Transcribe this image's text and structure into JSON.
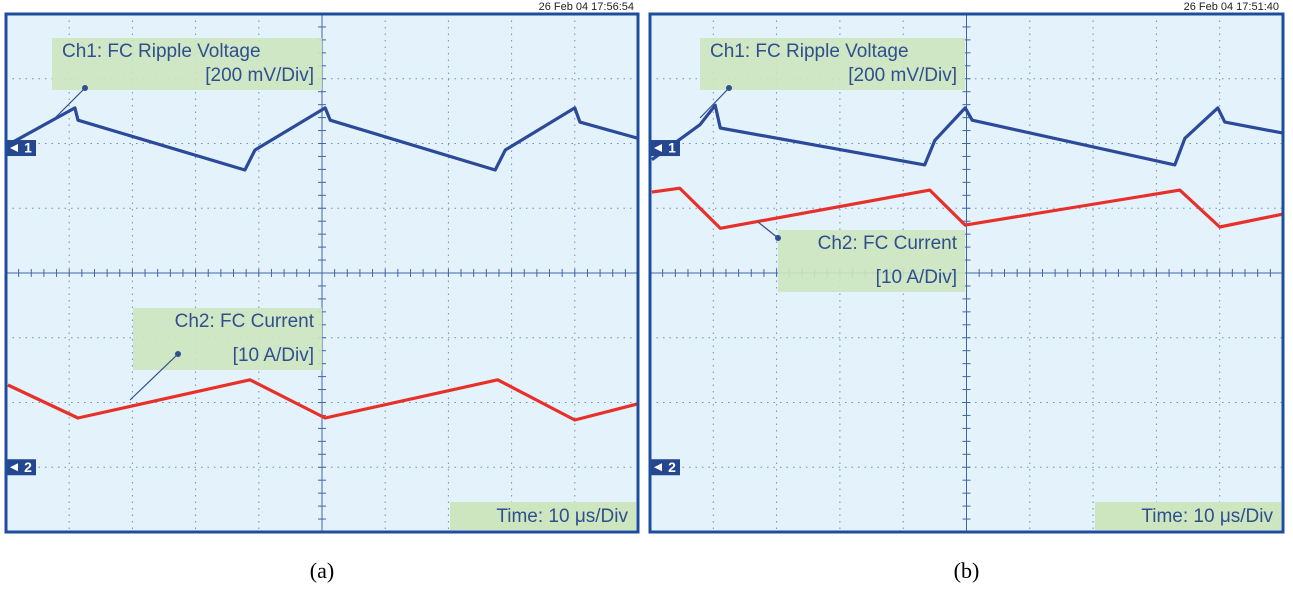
{
  "chart_data": [
    {
      "type": "line",
      "timestamp": "26 Feb 04  17:56:54",
      "caption": "(a)",
      "ch1_label": [
        "Ch1: FC Ripple Voltage",
        "[200 mV/Div]"
      ],
      "ch2_label": [
        "Ch2: FC Current",
        "[10 A/Div]"
      ],
      "time_label": "Time: 10 μs/Div",
      "channel_markers": [
        "1",
        "2"
      ],
      "xlim": [
        0,
        10
      ],
      "ylim": [
        0,
        8
      ],
      "xticks": [
        0,
        1,
        2,
        3,
        4,
        5,
        6,
        7,
        8,
        9,
        10
      ],
      "yticks": [
        0,
        1,
        2,
        3,
        4,
        5,
        6,
        7,
        8
      ],
      "grid": true,
      "series": [
        {
          "color": "#2b4a9a",
          "x": [
            0.03,
            1.09,
            1.14,
            3.78,
            3.94,
            5.05,
            5.13,
            7.74,
            7.9,
            9.0,
            9.08,
            10
          ],
          "values": [
            5.98,
            6.55,
            6.36,
            5.59,
            5.9,
            6.55,
            6.36,
            5.59,
            5.9,
            6.55,
            6.33,
            6.08
          ]
        },
        {
          "color": "#e8302a",
          "x": [
            0.03,
            1.14,
            3.86,
            5.05,
            7.78,
            9.0,
            10
          ],
          "values": [
            2.27,
            1.76,
            2.35,
            1.76,
            2.35,
            1.73,
            1.98
          ]
        }
      ]
    },
    {
      "type": "line",
      "timestamp": "26 Feb 04  17:51:40",
      "caption": "(b)",
      "ch1_label": [
        "Ch1: FC Ripple Voltage",
        "[200 mV/Div]"
      ],
      "ch2_label": [
        "Ch2: FC Current",
        "[10 A/Div]"
      ],
      "time_label": "Time: 10 μs/Div",
      "channel_markers": [
        "1",
        "2"
      ],
      "xlim": [
        0,
        10
      ],
      "ylim": [
        0,
        8
      ],
      "xticks": [
        0,
        1,
        2,
        3,
        4,
        5,
        6,
        7,
        8,
        9,
        10
      ],
      "yticks": [
        0,
        1,
        2,
        3,
        4,
        5,
        6,
        7,
        8
      ],
      "grid": true,
      "series": [
        {
          "color": "#2b4a9a",
          "x": [
            0.03,
            0.79,
            1.03,
            1.11,
            4.34,
            4.5,
            4.98,
            5.09,
            8.29,
            8.45,
            8.97,
            9.08,
            10
          ],
          "values": [
            5.75,
            6.29,
            6.59,
            6.24,
            5.67,
            6.05,
            6.55,
            6.36,
            5.67,
            6.08,
            6.55,
            6.33,
            6.16
          ]
        },
        {
          "color": "#e8302a",
          "x": [
            0.03,
            0.47,
            1.11,
            4.42,
            4.98,
            8.37,
            9.0,
            10
          ],
          "values": [
            5.25,
            5.31,
            4.69,
            5.28,
            4.74,
            5.28,
            4.71,
            4.91
          ]
        }
      ]
    }
  ]
}
